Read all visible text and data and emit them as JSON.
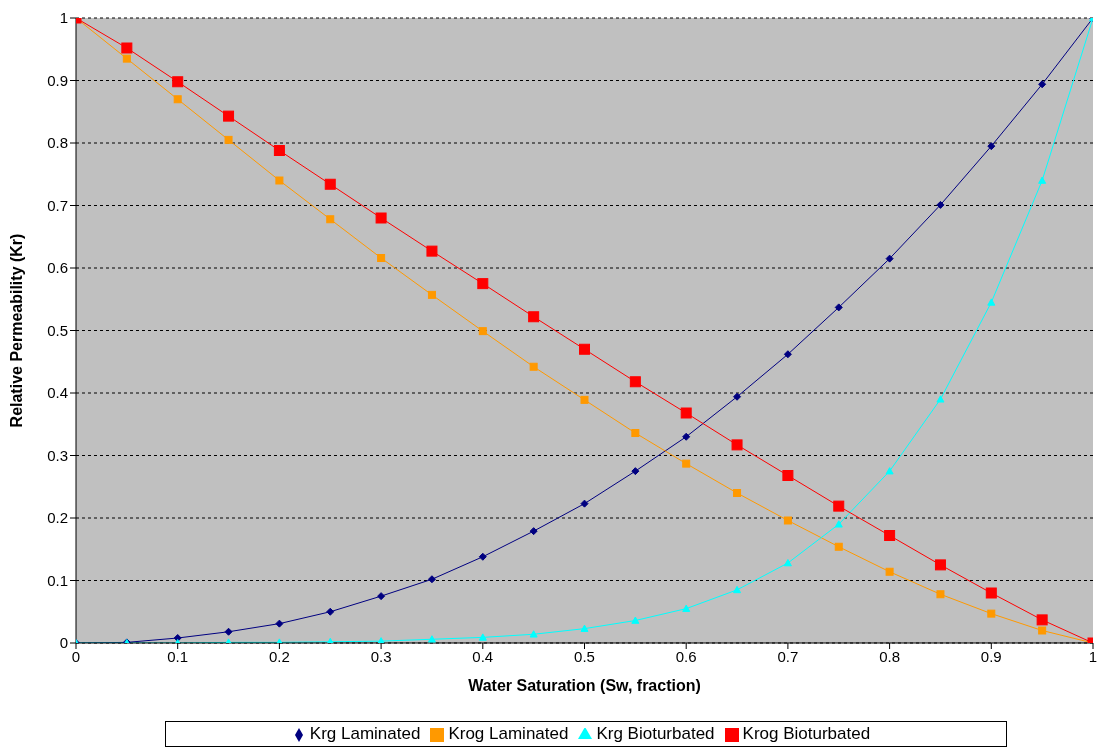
{
  "chart_data": {
    "type": "line",
    "xlabel": "Water Saturation (Sw, fraction)",
    "ylabel": "Relative Permeability (Kr)",
    "x": [
      0,
      0.05,
      0.1,
      0.15,
      0.2,
      0.25,
      0.3,
      0.35,
      0.4,
      0.45,
      0.5,
      0.55,
      0.6,
      0.65,
      0.7,
      0.75,
      0.8,
      0.85,
      0.9,
      0.95,
      1
    ],
    "series": [
      {
        "name": "Krg Laminated",
        "color": "#000080",
        "marker": "diamond",
        "values": [
          0,
          0.001,
          0.008,
          0.018,
          0.031,
          0.05,
          0.075,
          0.102,
          0.138,
          0.179,
          0.223,
          0.275,
          0.33,
          0.394,
          0.462,
          0.537,
          0.615,
          0.701,
          0.795,
          0.894,
          1
        ]
      },
      {
        "name": "Krog Laminated",
        "color": "#ff9900",
        "marker": "square",
        "values": [
          1,
          0.935,
          0.87,
          0.805,
          0.74,
          0.678,
          0.616,
          0.557,
          0.499,
          0.442,
          0.389,
          0.336,
          0.287,
          0.24,
          0.196,
          0.154,
          0.114,
          0.078,
          0.047,
          0.02,
          0
        ]
      },
      {
        "name": "Krg Bioturbated",
        "color": "#00ffff",
        "marker": "triangle",
        "values": [
          0,
          0,
          0,
          0.001,
          0.001,
          0.002,
          0.003,
          0.006,
          0.009,
          0.014,
          0.023,
          0.036,
          0.055,
          0.085,
          0.128,
          0.19,
          0.275,
          0.39,
          0.545,
          0.74,
          1
        ]
      },
      {
        "name": "Krog Bioturbated",
        "color": "#ff0000",
        "marker": "square",
        "values": [
          1,
          0.952,
          0.898,
          0.843,
          0.788,
          0.734,
          0.68,
          0.627,
          0.575,
          0.522,
          0.47,
          0.418,
          0.368,
          0.317,
          0.268,
          0.219,
          0.172,
          0.125,
          0.08,
          0.037,
          0
        ]
      }
    ],
    "xlim": [
      0,
      1
    ],
    "xticks": [
      0,
      0.1,
      0.2,
      0.3,
      0.4,
      0.5,
      0.6,
      0.7,
      0.8,
      0.9,
      1
    ],
    "ylim": [
      0,
      1
    ],
    "yticks": [
      0,
      0.1,
      0.2,
      0.3,
      0.4,
      0.5,
      0.6,
      0.7,
      0.8,
      0.9,
      1
    ],
    "grid": "y",
    "legend": "bottom",
    "line_style": "solid"
  }
}
